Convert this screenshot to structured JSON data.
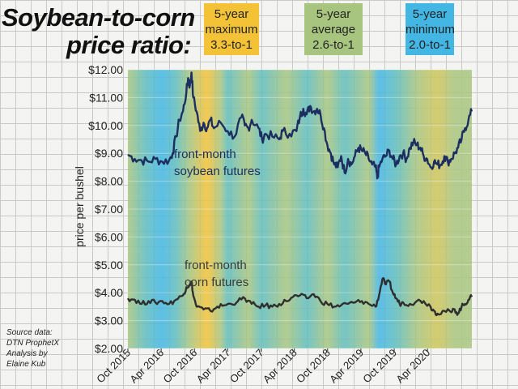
{
  "title": [
    "Soybean-to-corn",
    "price ratio:"
  ],
  "legend": [
    {
      "line1": "5-year",
      "line2": "maximum",
      "line3": "3.3-to-1",
      "color": "#f3c237"
    },
    {
      "line1": "5-year",
      "line2": "average",
      "line3": "2.6-to-1",
      "color": "#a8c57f"
    },
    {
      "line1": "5-year",
      "line2": "minimum",
      "line3": "2.0-to-1",
      "color": "#43b6e4"
    }
  ],
  "source": [
    "Source data:",
    "DTN ProphetX",
    "Analysis by",
    "Elaine Kub"
  ],
  "chart_data": {
    "type": "line",
    "ylabel": "price per bushel",
    "ylim": [
      2,
      12
    ],
    "ytick_labels": [
      "$2.00",
      "$3.00",
      "$4.00",
      "$5.00",
      "$6.00",
      "$7.00",
      "$8.00",
      "$9.00",
      "$10.00",
      "$11.00",
      "$12.00"
    ],
    "xlim": [
      "2015-10",
      "2020-12"
    ],
    "xtick_labels": [
      "Oct 2015",
      "Apr 2016",
      "Oct 2016",
      "Apr 2017",
      "Oct 2017",
      "Apr 2018",
      "Oct 2018",
      "Apr 2019",
      "Oct 2019",
      "Apr 2020"
    ],
    "background_ratio_colors": {
      "high": "#f3c237",
      "average": "#a8c57f",
      "low": "#43b6e4"
    },
    "background_bands": [
      {
        "t": 0.0,
        "ratio": "average"
      },
      {
        "t": 0.05,
        "ratio": "mid-low"
      },
      {
        "t": 0.1,
        "ratio": "low"
      },
      {
        "t": 0.14,
        "ratio": "mid-low"
      },
      {
        "t": 0.18,
        "ratio": "average"
      },
      {
        "t": 0.23,
        "ratio": "high"
      },
      {
        "t": 0.27,
        "ratio": "average"
      },
      {
        "t": 0.29,
        "ratio": "mid-low"
      },
      {
        "t": 0.35,
        "ratio": "average"
      },
      {
        "t": 0.39,
        "ratio": "mid-low"
      },
      {
        "t": 0.46,
        "ratio": "average"
      },
      {
        "t": 0.52,
        "ratio": "mid-low"
      },
      {
        "t": 0.58,
        "ratio": "average"
      },
      {
        "t": 0.63,
        "ratio": "mid-low"
      },
      {
        "t": 0.7,
        "ratio": "average"
      },
      {
        "t": 0.73,
        "ratio": "low"
      },
      {
        "t": 0.78,
        "ratio": "mid-low"
      },
      {
        "t": 0.84,
        "ratio": "average"
      },
      {
        "t": 0.9,
        "ratio": "mid-high"
      },
      {
        "t": 0.95,
        "ratio": "average"
      }
    ],
    "series": [
      {
        "name": "front-month soybean futures",
        "label_lines": [
          "front-month",
          "soybean futures"
        ],
        "color": "#1c2f60",
        "points": [
          [
            0.0,
            8.95
          ],
          [
            0.02,
            8.8
          ],
          [
            0.04,
            8.75
          ],
          [
            0.06,
            8.7
          ],
          [
            0.08,
            8.8
          ],
          [
            0.1,
            8.7
          ],
          [
            0.12,
            8.75
          ],
          [
            0.13,
            9.0
          ],
          [
            0.14,
            9.6
          ],
          [
            0.15,
            10.2
          ],
          [
            0.16,
            10.5
          ],
          [
            0.17,
            11.2
          ],
          [
            0.175,
            11.7
          ],
          [
            0.18,
            11.4
          ],
          [
            0.185,
            11.9
          ],
          [
            0.19,
            11.0
          ],
          [
            0.2,
            10.5
          ],
          [
            0.21,
            9.8
          ],
          [
            0.22,
            10.1
          ],
          [
            0.23,
            9.9
          ],
          [
            0.24,
            10.2
          ],
          [
            0.25,
            9.9
          ],
          [
            0.27,
            10.1
          ],
          [
            0.29,
            9.8
          ],
          [
            0.31,
            9.6
          ],
          [
            0.33,
            10.3
          ],
          [
            0.34,
            10.0
          ],
          [
            0.35,
            9.9
          ],
          [
            0.36,
            10.2
          ],
          [
            0.38,
            9.9
          ],
          [
            0.39,
            9.5
          ],
          [
            0.4,
            9.7
          ],
          [
            0.42,
            9.6
          ],
          [
            0.44,
            9.5
          ],
          [
            0.45,
            9.8
          ],
          [
            0.47,
            9.7
          ],
          [
            0.49,
            9.8
          ],
          [
            0.5,
            10.3
          ],
          [
            0.51,
            10.6
          ],
          [
            0.52,
            10.4
          ],
          [
            0.53,
            10.7
          ],
          [
            0.54,
            10.5
          ],
          [
            0.55,
            10.6
          ],
          [
            0.56,
            10.4
          ],
          [
            0.57,
            9.9
          ],
          [
            0.58,
            9.3
          ],
          [
            0.59,
            9.0
          ],
          [
            0.6,
            8.6
          ],
          [
            0.61,
            8.5
          ],
          [
            0.62,
            8.9
          ],
          [
            0.63,
            8.3
          ],
          [
            0.64,
            8.8
          ],
          [
            0.65,
            8.6
          ],
          [
            0.66,
            8.9
          ],
          [
            0.67,
            9.2
          ],
          [
            0.68,
            9.1
          ],
          [
            0.69,
            9.0
          ],
          [
            0.7,
            8.8
          ],
          [
            0.71,
            8.6
          ],
          [
            0.72,
            8.5
          ],
          [
            0.725,
            8.1
          ],
          [
            0.73,
            8.5
          ],
          [
            0.74,
            8.8
          ],
          [
            0.75,
            8.9
          ],
          [
            0.76,
            9.1
          ],
          [
            0.77,
            8.8
          ],
          [
            0.78,
            8.6
          ],
          [
            0.79,
            8.9
          ],
          [
            0.8,
            9.0
          ],
          [
            0.81,
            8.8
          ],
          [
            0.82,
            9.2
          ],
          [
            0.83,
            9.4
          ],
          [
            0.84,
            9.3
          ],
          [
            0.85,
            9.2
          ],
          [
            0.86,
            8.9
          ],
          [
            0.87,
            8.8
          ],
          [
            0.88,
            8.5
          ],
          [
            0.89,
            8.7
          ],
          [
            0.9,
            8.6
          ],
          [
            0.91,
            8.6
          ],
          [
            0.92,
            8.9
          ],
          [
            0.93,
            8.7
          ],
          [
            0.94,
            8.8
          ],
          [
            0.95,
            9.0
          ],
          [
            0.96,
            9.2
          ],
          [
            0.97,
            9.5
          ],
          [
            0.98,
            9.9
          ],
          [
            0.99,
            10.2
          ],
          [
            1.0,
            10.5
          ]
        ]
      },
      {
        "name": "front-month corn futures",
        "label_lines": [
          "front-month",
          "corn futures"
        ],
        "color": "#2f2f2f",
        "points": [
          [
            0.0,
            3.8
          ],
          [
            0.02,
            3.75
          ],
          [
            0.04,
            3.6
          ],
          [
            0.06,
            3.7
          ],
          [
            0.08,
            3.65
          ],
          [
            0.1,
            3.7
          ],
          [
            0.12,
            3.6
          ],
          [
            0.14,
            3.75
          ],
          [
            0.16,
            3.9
          ],
          [
            0.17,
            4.2
          ],
          [
            0.18,
            4.3
          ],
          [
            0.185,
            4.4
          ],
          [
            0.19,
            3.9
          ],
          [
            0.2,
            3.5
          ],
          [
            0.22,
            3.4
          ],
          [
            0.24,
            3.35
          ],
          [
            0.26,
            3.5
          ],
          [
            0.28,
            3.55
          ],
          [
            0.3,
            3.6
          ],
          [
            0.32,
            3.7
          ],
          [
            0.34,
            3.8
          ],
          [
            0.36,
            3.6
          ],
          [
            0.38,
            3.5
          ],
          [
            0.4,
            3.55
          ],
          [
            0.42,
            3.5
          ],
          [
            0.44,
            3.6
          ],
          [
            0.46,
            3.7
          ],
          [
            0.48,
            3.85
          ],
          [
            0.5,
            3.9
          ],
          [
            0.52,
            3.8
          ],
          [
            0.54,
            3.95
          ],
          [
            0.56,
            3.7
          ],
          [
            0.58,
            3.6
          ],
          [
            0.6,
            3.5
          ],
          [
            0.62,
            3.55
          ],
          [
            0.64,
            3.6
          ],
          [
            0.66,
            3.65
          ],
          [
            0.68,
            3.7
          ],
          [
            0.7,
            3.6
          ],
          [
            0.72,
            3.5
          ],
          [
            0.73,
            3.9
          ],
          [
            0.74,
            4.5
          ],
          [
            0.75,
            4.3
          ],
          [
            0.76,
            4.4
          ],
          [
            0.77,
            4.0
          ],
          [
            0.78,
            3.8
          ],
          [
            0.79,
            3.6
          ],
          [
            0.8,
            3.65
          ],
          [
            0.82,
            3.6
          ],
          [
            0.84,
            3.7
          ],
          [
            0.86,
            3.7
          ],
          [
            0.88,
            3.5
          ],
          [
            0.89,
            3.35
          ],
          [
            0.9,
            3.25
          ],
          [
            0.92,
            3.35
          ],
          [
            0.94,
            3.3
          ],
          [
            0.95,
            3.4
          ],
          [
            0.96,
            3.25
          ],
          [
            0.97,
            3.5
          ],
          [
            0.98,
            3.6
          ],
          [
            0.99,
            3.75
          ],
          [
            1.0,
            3.85
          ]
        ]
      }
    ]
  }
}
